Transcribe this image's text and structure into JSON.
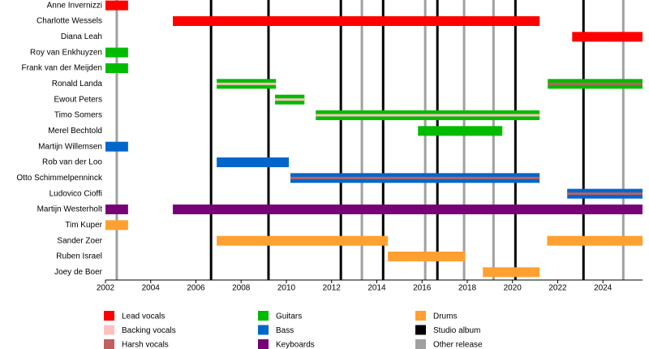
{
  "chart_data": {
    "type": "timeline",
    "categories": [
      "Anne Invernizzi",
      "Charlotte Wessels",
      "Diana Leah",
      "Roy van Enkhuyzen",
      "Frank van der Meijden",
      "Ronald Landa",
      "Ewout Peters",
      "Timo Somers",
      "Merel Bechtold",
      "Martijn Willemsen",
      "Rob van der Loo",
      "Otto Schimmelpenninck",
      "Ludovico Cioffi",
      "Martijn Westerholt",
      "Tim Kuper",
      "Sander Zoer",
      "Ruben Israel",
      "Joey de Boer"
    ],
    "xlim": [
      2002,
      2025.75
    ],
    "xticks": [
      2002,
      2004,
      2006,
      2008,
      2010,
      2012,
      2014,
      2016,
      2018,
      2020,
      2022,
      2024
    ],
    "series": [
      {
        "name": "Lead vocals",
        "color": "#ff0000",
        "style": "bar",
        "bars": [
          {
            "row": 0,
            "start": 2002,
            "end": 2003
          },
          {
            "row": 1,
            "start": 2004.98,
            "end": 2021.2
          },
          {
            "row": 2,
            "start": 2022.64,
            "end": 2025.75
          }
        ]
      },
      {
        "name": "Backing vocals",
        "color": "#ffc0c0",
        "style": "stripe",
        "bars": [
          {
            "row": 5,
            "start": 2006.92,
            "end": 2009.54
          },
          {
            "row": 6,
            "start": 2009.5,
            "end": 2010.8
          },
          {
            "row": 7,
            "start": 2011.3,
            "end": 2021.2
          }
        ]
      },
      {
        "name": "Harsh vocals",
        "color": "#c06060",
        "style": "stripe",
        "bars": [
          {
            "row": 5,
            "start": 2021.56,
            "end": 2025.75
          },
          {
            "row": 11,
            "start": 2010.18,
            "end": 2021.2
          },
          {
            "row": 12,
            "start": 2022.42,
            "end": 2025.75
          }
        ]
      },
      {
        "name": "Guitars",
        "color": "#00bb00",
        "style": "bar",
        "bars": [
          {
            "row": 3,
            "start": 2002,
            "end": 2003
          },
          {
            "row": 4,
            "start": 2002,
            "end": 2003
          },
          {
            "row": 5,
            "start": 2006.92,
            "end": 2009.54
          },
          {
            "row": 5,
            "start": 2021.56,
            "end": 2025.75
          },
          {
            "row": 6,
            "start": 2009.5,
            "end": 2010.8
          },
          {
            "row": 7,
            "start": 2011.3,
            "end": 2021.2
          },
          {
            "row": 8,
            "start": 2015.82,
            "end": 2019.55
          }
        ]
      },
      {
        "name": "Bass",
        "color": "#0066cc",
        "style": "bar",
        "bars": [
          {
            "row": 9,
            "start": 2002,
            "end": 2003
          },
          {
            "row": 10,
            "start": 2006.92,
            "end": 2010.11
          },
          {
            "row": 11,
            "start": 2010.18,
            "end": 2021.2
          },
          {
            "row": 12,
            "start": 2022.42,
            "end": 2025.75
          }
        ]
      },
      {
        "name": "Keyboards",
        "color": "#770077",
        "style": "bar",
        "bars": [
          {
            "row": 13,
            "start": 2002,
            "end": 2003
          },
          {
            "row": 13,
            "start": 2004.98,
            "end": 2025.75
          }
        ]
      },
      {
        "name": "Drums",
        "color": "#ffa030",
        "style": "bar",
        "bars": [
          {
            "row": 14,
            "start": 2002,
            "end": 2003
          },
          {
            "row": 15,
            "start": 2006.92,
            "end": 2014.49
          },
          {
            "row": 15,
            "start": 2021.53,
            "end": 2025.75
          },
          {
            "row": 16,
            "start": 2014.49,
            "end": 2017.9
          },
          {
            "row": 17,
            "start": 2018.69,
            "end": 2021.2
          }
        ]
      }
    ],
    "lines": [
      {
        "name": "Studio album",
        "color": "#000000",
        "x": [
          2006.67,
          2009.21,
          2012.41,
          2014.28,
          2016.68,
          2020.13,
          2023.14
        ]
      },
      {
        "name": "Other release",
        "color": "#a0a0a0",
        "x": [
          2002.5,
          2013.34,
          2016.14,
          2017.86,
          2019.16,
          2024.9
        ]
      }
    ]
  }
}
